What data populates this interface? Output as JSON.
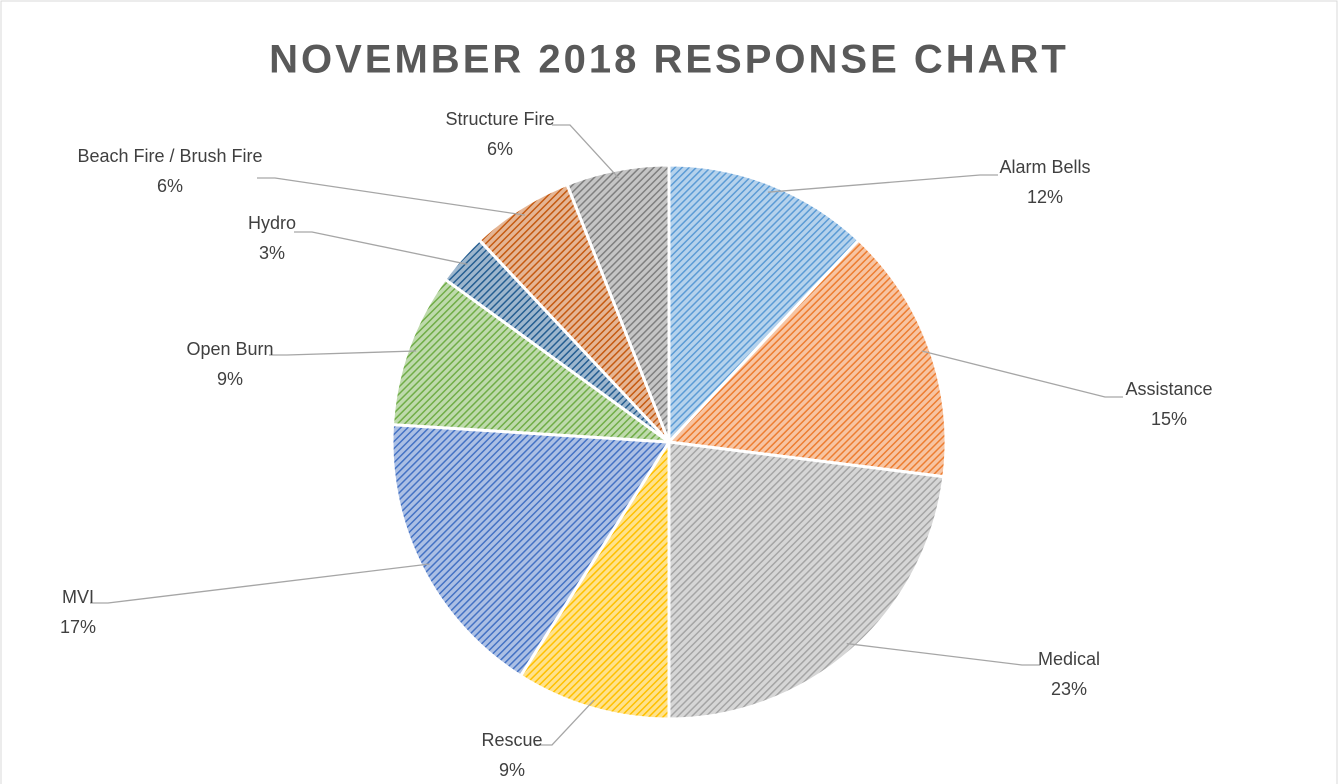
{
  "chart_data": {
    "type": "pie",
    "title": "NOVEMBER 2018 RESPONSE CHART",
    "categories": [
      "Alarm Bells",
      "Assistance",
      "Medical",
      "Rescue",
      "MVI",
      "Open Burn",
      "Hydro",
      "Beach Fire / Brush Fire",
      "Structure Fire"
    ],
    "values": [
      12,
      15,
      23,
      9,
      17,
      9,
      3,
      6,
      6
    ],
    "value_labels": [
      "12%",
      "15%",
      "23%",
      "9%",
      "17%",
      "9%",
      "3%",
      "6%",
      "6%"
    ],
    "colors": [
      "#5b9bd5",
      "#ed7d31",
      "#a5a5a5",
      "#ffc000",
      "#4472c4",
      "#70ad47",
      "#255e91",
      "#c55a11",
      "#7f7f7f"
    ]
  }
}
